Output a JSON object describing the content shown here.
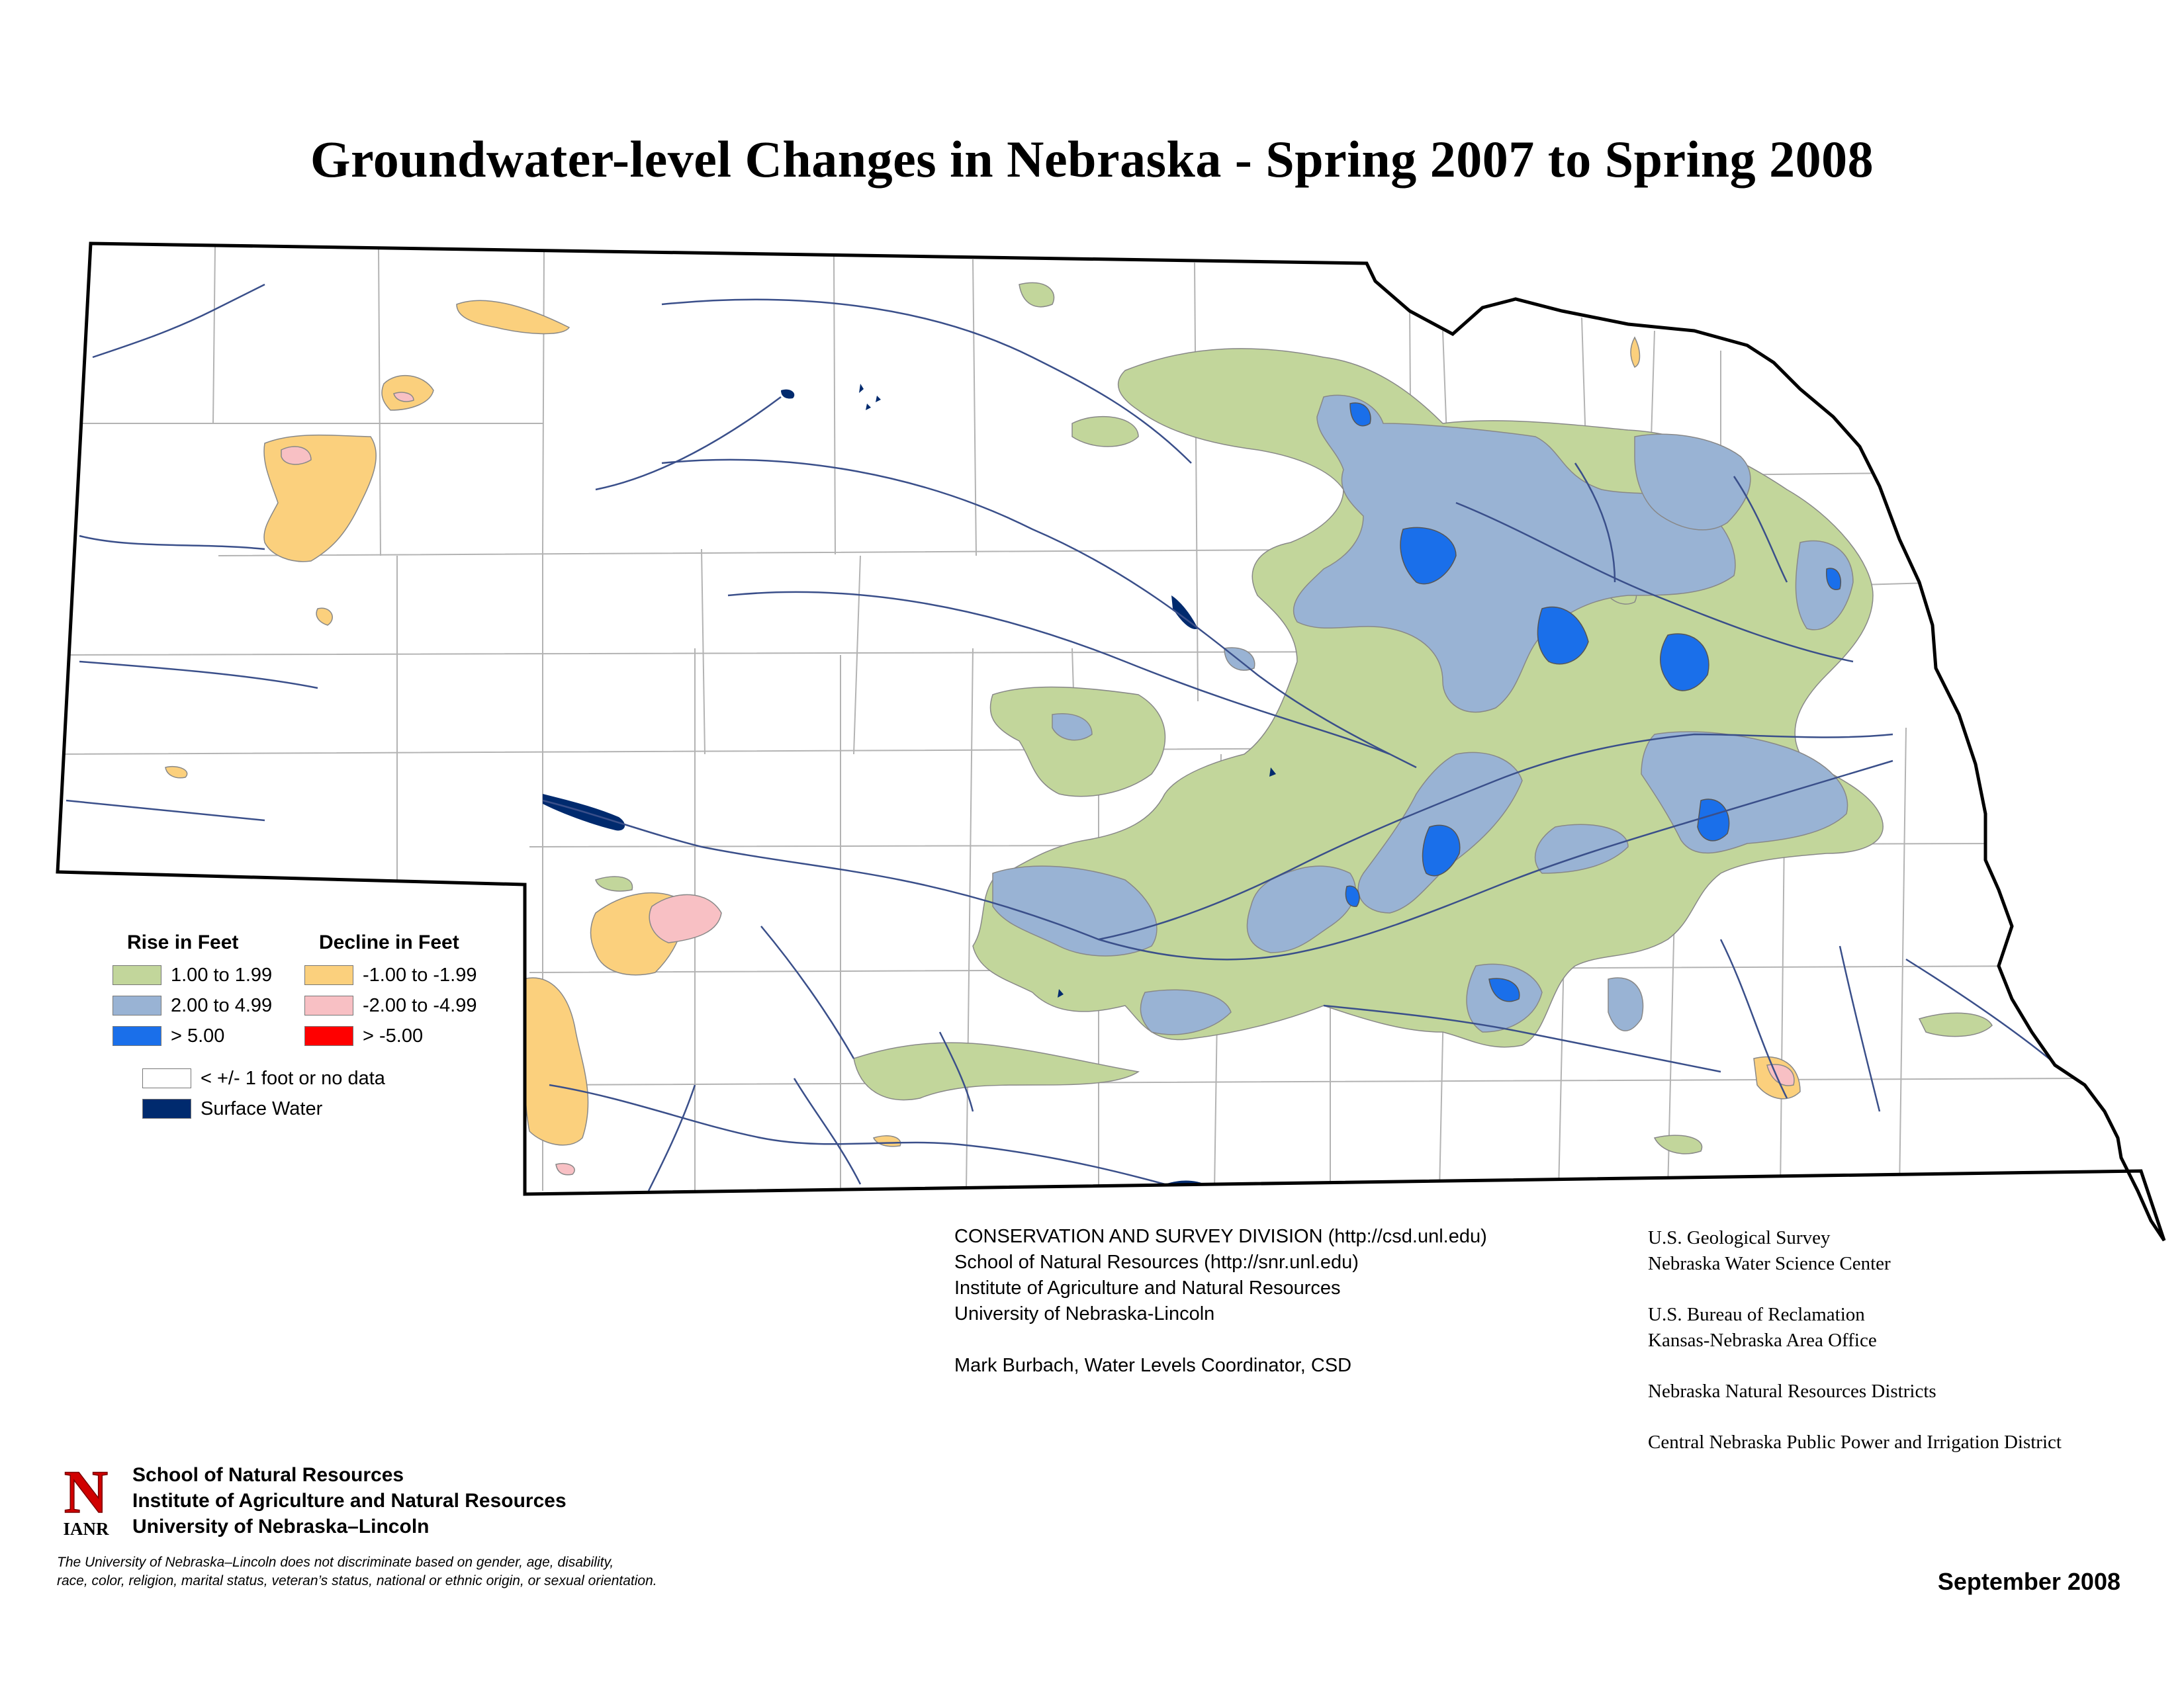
{
  "title": "Groundwater-level Changes in Nebraska - Spring 2007 to Spring 2008",
  "colors": {
    "rise_1": "#c2d69b",
    "rise_2": "#99b3d4",
    "rise_5": "#1a6fea",
    "decline_1": "#fbd07d",
    "decline_2": "#f8c0c4",
    "decline_5": "#ff0000",
    "no_change": "#ffffff",
    "surface_water": "#002a6e",
    "rivers": "#3a4f8a",
    "county_lines": "#b3b3b3",
    "state_border": "#000000"
  },
  "legend": {
    "rise_heading": "Rise in Feet",
    "decline_heading": "Decline in Feet",
    "rise": [
      {
        "label": "1.00 to 1.99",
        "color": "#c2d69b"
      },
      {
        "label": "2.00 to 4.99",
        "color": "#99b3d4"
      },
      {
        "label": "> 5.00",
        "color": "#1a6fea"
      }
    ],
    "decline": [
      {
        "label": "-1.00 to -1.99",
        "color": "#fbd07d"
      },
      {
        "label": "-2.00 to -4.99",
        "color": "#f8c0c4"
      },
      {
        "label": "> -5.00",
        "color": "#ff0000"
      }
    ],
    "other": [
      {
        "label": "< +/- 1 foot or no data",
        "color": "#ffffff"
      },
      {
        "label": "Surface Water",
        "color": "#002a6e"
      }
    ]
  },
  "credits": [
    "CONSERVATION AND SURVEY DIVISION (http://csd.unl.edu)",
    "School of Natural Resources (http://snr.unl.edu)",
    "Institute of Agriculture and Natural Resources",
    "University of Nebraska-Lincoln",
    "",
    "Mark Burbach, Water Levels Coordinator, CSD"
  ],
  "partners": [
    [
      "U.S. Geological Survey",
      "Nebraska Water Science Center"
    ],
    [
      "U.S. Bureau of Reclamation",
      "Kansas-Nebraska Area Office"
    ],
    [
      "Nebraska Natural Resources Districts"
    ],
    [
      "Central Nebraska Public Power and Irrigation District"
    ]
  ],
  "logo": {
    "letter": "N",
    "text": "IANR"
  },
  "org": [
    "School of Natural Resources",
    "Institute of Agriculture and Natural Resources",
    "University of Nebraska–Lincoln"
  ],
  "disclaimer": [
    "The University of Nebraska–Lincoln does not discriminate based on gender, age, disability,",
    "race, color, religion, marital status, veteran’s status, national or ethnic origin, or sexual orientation."
  ],
  "date": "September 2008"
}
